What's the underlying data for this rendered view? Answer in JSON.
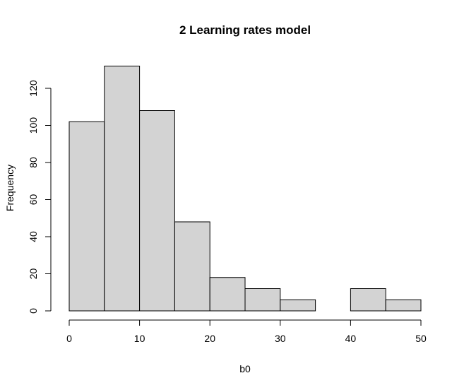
{
  "chart_data": {
    "type": "bar",
    "title": "2 Learning rates model",
    "xlabel": "b0",
    "ylabel": "Frequency",
    "bins": [
      {
        "from": 0,
        "to": 5,
        "count": 102
      },
      {
        "from": 5,
        "to": 10,
        "count": 132
      },
      {
        "from": 10,
        "to": 15,
        "count": 108
      },
      {
        "from": 15,
        "to": 20,
        "count": 48
      },
      {
        "from": 20,
        "to": 25,
        "count": 18
      },
      {
        "from": 25,
        "to": 30,
        "count": 12
      },
      {
        "from": 30,
        "to": 35,
        "count": 6
      },
      {
        "from": 35,
        "to": 40,
        "count": 0
      },
      {
        "from": 40,
        "to": 45,
        "count": 12
      },
      {
        "from": 45,
        "to": 50,
        "count": 6
      }
    ],
    "xlim": [
      0,
      50
    ],
    "ylim": [
      0,
      132
    ],
    "xticks": [
      0,
      10,
      20,
      30,
      40,
      50
    ],
    "yticks": [
      0,
      20,
      40,
      60,
      80,
      100,
      120
    ],
    "grid": false,
    "colors": {
      "bar_fill": "#d3d3d3",
      "bar_stroke": "#000000"
    }
  }
}
